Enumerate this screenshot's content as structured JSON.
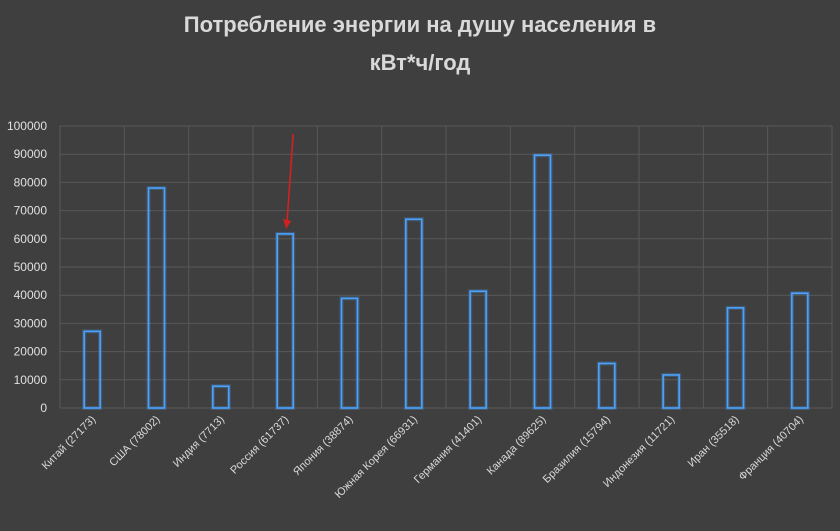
{
  "chart_data": {
    "type": "bar",
    "title_line1": "Потребление энергии на душу населения в",
    "title_line2": "кВт*ч/год",
    "categories": [
      "Китай (27173)",
      "США (78002)",
      "Индия (7713)",
      "Россия (61737)",
      "Япония (38874)",
      "Южная Корея (66931)",
      "Германия (41401)",
      "Канада (89625)",
      "Бразилия (15794)",
      "Индонезия (11721)",
      "Иран (35518)",
      "Франция (40704)"
    ],
    "values": [
      27173,
      78002,
      7713,
      61737,
      38874,
      66931,
      41401,
      89625,
      15794,
      11721,
      35518,
      40704
    ],
    "ylim": [
      0,
      100000
    ],
    "yticks": [
      0,
      10000,
      20000,
      30000,
      40000,
      50000,
      60000,
      70000,
      80000,
      90000,
      100000
    ],
    "grid": true,
    "bar_color": "#4aa3ff",
    "arrow_color": "#d42020",
    "highlighted_category": "Россия (61737)"
  }
}
